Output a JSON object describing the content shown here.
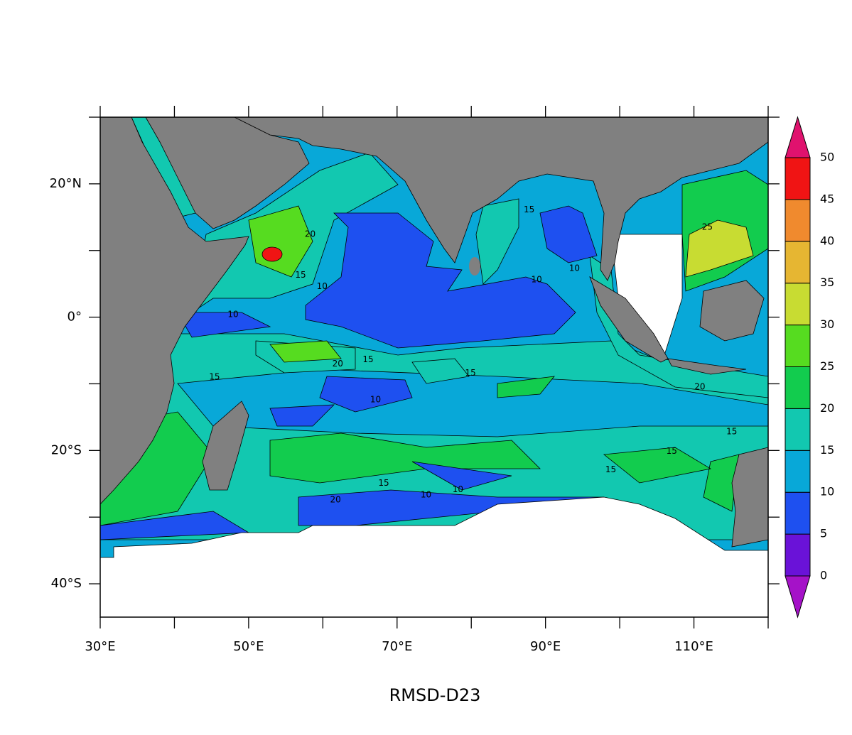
{
  "map": {
    "title": "RMSD-D23",
    "xlim": [
      30,
      120
    ],
    "ylim": [
      -45,
      30
    ],
    "xticks": [
      {
        "value": 30,
        "label": "30°E"
      },
      {
        "value": 50,
        "label": "50°E"
      },
      {
        "value": 70,
        "label": "70°E"
      },
      {
        "value": 90,
        "label": "90°E"
      },
      {
        "value": 110,
        "label": "110°E"
      }
    ],
    "yticks": [
      {
        "value": 20,
        "label": "20°N"
      },
      {
        "value": 0,
        "label": "0°"
      },
      {
        "value": -20,
        "label": "20°S"
      },
      {
        "value": -40,
        "label": "40°S"
      }
    ],
    "xminor_ticks": [
      40,
      60,
      80,
      100,
      120
    ],
    "yminor_ticks": [
      30,
      10,
      -10,
      -30
    ],
    "colorbar": {
      "levels": [
        0,
        5,
        10,
        15,
        20,
        25,
        30,
        35,
        40,
        45,
        50
      ],
      "colors": [
        "#a512c8",
        "#6a12d8",
        "#1e50f0",
        "#08a8d8",
        "#12c8b0",
        "#12cc4e",
        "#56dc20",
        "#c8dc32",
        "#e6b632",
        "#f08a2e",
        "#f01414",
        "#e0126e"
      ]
    },
    "contour_labels": [
      {
        "text": "15",
        "lon": 87.8,
        "lat": 16.1
      },
      {
        "text": "10",
        "lon": 93.9,
        "lat": 7.3
      },
      {
        "text": "10",
        "lon": 88.8,
        "lat": 5.6
      },
      {
        "text": "20",
        "lon": 58.3,
        "lat": 12.4
      },
      {
        "text": "15",
        "lon": 57.0,
        "lat": 6.3
      },
      {
        "text": "10",
        "lon": 59.9,
        "lat": 4.6
      },
      {
        "text": "10",
        "lon": 47.9,
        "lat": 0.4
      },
      {
        "text": "15",
        "lon": 45.4,
        "lat": -9.0
      },
      {
        "text": "20",
        "lon": 62.0,
        "lat": -7.0
      },
      {
        "text": "15",
        "lon": 66.1,
        "lat": -6.4
      },
      {
        "text": "15",
        "lon": 79.9,
        "lat": -8.4
      },
      {
        "text": "10",
        "lon": 67.1,
        "lat": -12.4
      },
      {
        "text": "20",
        "lon": 110.8,
        "lat": -10.5
      },
      {
        "text": "15",
        "lon": 115.1,
        "lat": -17.2
      },
      {
        "text": "15",
        "lon": 107.0,
        "lat": -20.1
      },
      {
        "text": "15",
        "lon": 98.8,
        "lat": -22.9
      },
      {
        "text": "25",
        "lon": 111.8,
        "lat": 13.5
      },
      {
        "text": "15",
        "lon": 68.2,
        "lat": -24.9
      },
      {
        "text": "10",
        "lon": 73.9,
        "lat": -26.7
      },
      {
        "text": "10",
        "lon": 78.2,
        "lat": -25.9
      },
      {
        "text": "20",
        "lon": 61.7,
        "lat": -27.4
      }
    ]
  }
}
